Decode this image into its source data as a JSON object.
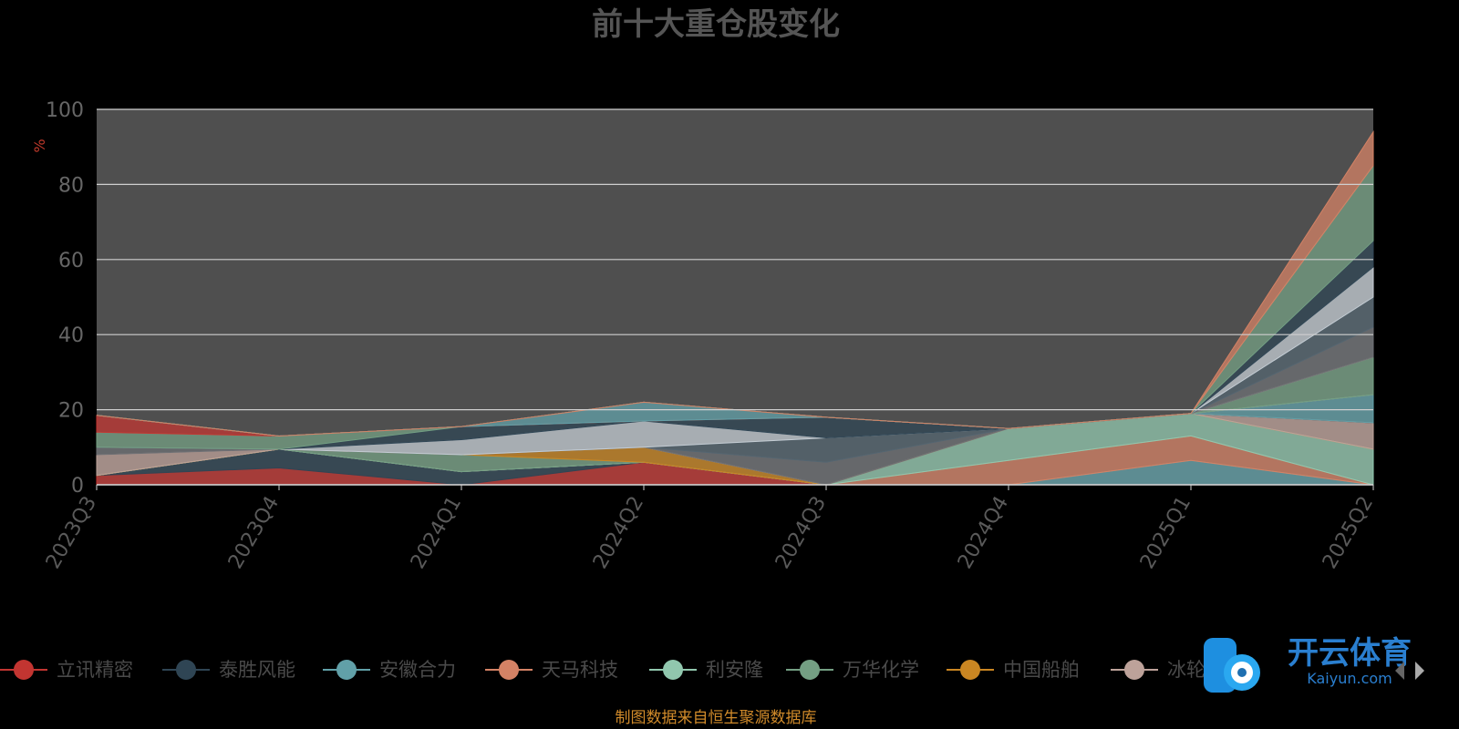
{
  "chart_data": {
    "type": "area",
    "title": "前十大重仓股变化",
    "ylabel": "%",
    "ylim": [
      0,
      100
    ],
    "yticks": [
      0,
      20,
      40,
      60,
      80,
      100
    ],
    "grid": true,
    "stacked": true,
    "categories": [
      "2023Q3",
      "2023Q4",
      "2024Q1",
      "2024Q2",
      "2024Q3",
      "2024Q4",
      "2025Q1",
      "2025Q2"
    ],
    "series": [
      {
        "name": "立讯精密",
        "color": "#c23531",
        "values": [
          2.5,
          4.5,
          0,
          6,
          0,
          0,
          0,
          0
        ]
      },
      {
        "name": "泰胜风能",
        "color": "#2f4554",
        "values": [
          0,
          5,
          3.5,
          0,
          0,
          0,
          0,
          0
        ]
      },
      {
        "name": "安徽合力",
        "color": "#61a0a8",
        "values": [
          0,
          0,
          0,
          0,
          0,
          0,
          6.5,
          0
        ]
      },
      {
        "name": "天马科技",
        "color": "#d48265",
        "values": [
          0,
          0,
          0,
          0,
          0,
          6.5,
          6.5,
          0
        ]
      },
      {
        "name": "利安隆",
        "color": "#91c7ae",
        "values": [
          0,
          0,
          0,
          0,
          0,
          8.5,
          6,
          9.5
        ]
      },
      {
        "name": "万华化学",
        "color": "#749f83",
        "values": [
          0,
          0,
          4.5,
          0,
          0,
          0,
          0,
          0
        ]
      },
      {
        "name": "中国船舶",
        "color": "#ca8622",
        "values": [
          0,
          0,
          0,
          4,
          0,
          0,
          0,
          0
        ]
      },
      {
        "name": "冰轮环境",
        "color": "#bda29a",
        "values": [
          5.5,
          0,
          0,
          0,
          0,
          0,
          0,
          7
        ]
      },
      {
        "name": "",
        "color": "#6e7074",
        "values": [
          2,
          0,
          0,
          0,
          6,
          0,
          0,
          0
        ]
      },
      {
        "name": "",
        "color": "#546570",
        "values": [
          0,
          0,
          0,
          0,
          6.5,
          0,
          0,
          0
        ]
      },
      {
        "name": "",
        "color": "#c4ccd3",
        "values": [
          0,
          0,
          4,
          7,
          0,
          0,
          0,
          0
        ]
      },
      {
        "name": "",
        "color": "#2f4554",
        "values": [
          0,
          0,
          3.5,
          0,
          5.5,
          0,
          0,
          0
        ]
      },
      {
        "name": "",
        "color": "#749f83",
        "values": [
          4,
          3.5,
          0,
          0,
          0,
          0,
          0,
          0
        ]
      },
      {
        "name": "",
        "color": "#c23531",
        "values": [
          4.5,
          0,
          0,
          0,
          0,
          0,
          0,
          0
        ]
      },
      {
        "name": "",
        "color": "#61a0a8",
        "values": [
          0,
          0,
          0,
          5,
          0,
          0,
          0,
          7.5
        ]
      },
      {
        "name": "",
        "color": "#c4ccd3",
        "values": [
          0,
          0,
          0,
          0,
          0,
          0,
          0,
          0
        ]
      },
      {
        "name": "",
        "color": "#6e7074",
        "values": [
          0,
          0,
          0,
          0,
          0,
          0,
          0,
          0
        ]
      },
      {
        "name": "",
        "color": "#749f83",
        "values": [
          0,
          0,
          0,
          0,
          0,
          0,
          0,
          10
        ]
      },
      {
        "name": "",
        "color": "#bda29a",
        "values": [
          0,
          0,
          0,
          0,
          0,
          0,
          0,
          0
        ]
      },
      {
        "name": "",
        "color": "#6e7074",
        "values": [
          0,
          0,
          0,
          0,
          0,
          0,
          0,
          8
        ]
      },
      {
        "name": "",
        "color": "#546570",
        "values": [
          0,
          0,
          0,
          0,
          0,
          0,
          0,
          8
        ]
      },
      {
        "name": "",
        "color": "#c4ccd3",
        "values": [
          0,
          0,
          0,
          0,
          0,
          0,
          0,
          8
        ]
      },
      {
        "name": "",
        "color": "#2f4554",
        "values": [
          0,
          0,
          0,
          0,
          0,
          0,
          0,
          7
        ]
      },
      {
        "name": "",
        "color": "#749f83",
        "values": [
          0,
          0,
          0,
          0,
          0,
          0,
          0,
          20
        ]
      },
      {
        "name": "",
        "color": "#d48265",
        "values": [
          0,
          0,
          0,
          0,
          0,
          0,
          0,
          9
        ]
      }
    ],
    "legend": [
      "立讯精密",
      "泰胜风能",
      "安徽合力",
      "天马科技",
      "利安隆",
      "万华化学",
      "中国船舶",
      "冰轮环境"
    ],
    "legend_position": "bottom"
  },
  "footer": {
    "source": "制图数据来自恒生聚源数据库"
  },
  "watermark": {
    "brand_cn": "开云体育",
    "brand_en": "Kaiyun.com"
  },
  "colors": {
    "background": "#000000",
    "plot_fill": "#4f4f4f",
    "grid": "#cfcfcf",
    "source": "#d08a2a"
  }
}
